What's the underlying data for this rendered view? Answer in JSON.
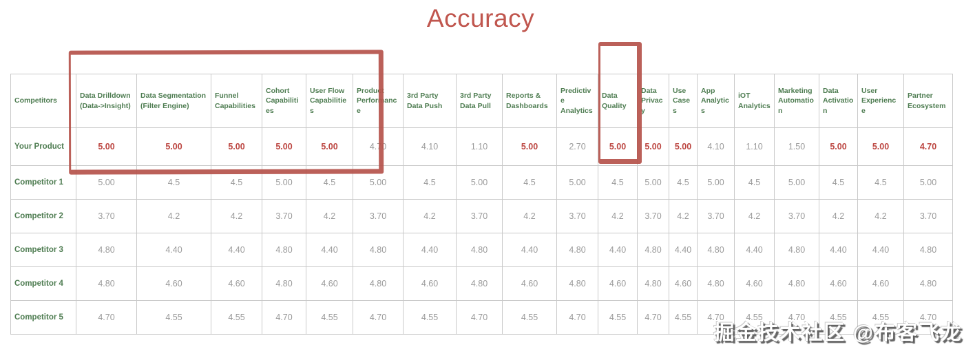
{
  "title": "Accuracy",
  "watermark": "掘金技术社区 @布客飞龙",
  "colors": {
    "title_red": "#c0564e",
    "header_green": "#4f7d52",
    "value_gray": "#9a9a9a",
    "highlight_red": "#bc4540",
    "annotation_red": "#b5524b",
    "grid_line": "#c9c9c9"
  },
  "annotations": [
    {
      "name": "core-capabilities-box",
      "covers": "Data Drilldown (Data->Insight) through User Flow Capabilities columns including Your Product scores"
    },
    {
      "name": "data-quality-box",
      "covers": "Data Quality column header and Your Product score"
    }
  ],
  "chart_data": {
    "type": "table",
    "title": "Accuracy",
    "corner_header": "Competitors",
    "columns": [
      "Data Drilldown (Data->Insight)",
      "Data Segmentation (Filter Engine)",
      "Funnel Capabilities",
      "Cohort Capabilities",
      "User Flow Capabilities",
      "Product Performance",
      "3rd Party Data Push",
      "3rd Party Data Pull",
      "Reports & Dashboards",
      "Predictive Analytics",
      "Data Quality",
      "Data Privacy",
      "Use Cases",
      "App Analytics",
      "iOT Analytics",
      "Marketing Automation",
      "Data Activation",
      "User Experience",
      "Partner Ecosystem"
    ],
    "rows": [
      {
        "label": "Your Product",
        "values": [
          "5.00",
          "5.00",
          "5.00",
          "5.00",
          "5.00",
          "4.70",
          "4.10",
          "1.10",
          "5.00",
          "2.70",
          "5.00",
          "5.00",
          "5.00",
          "4.10",
          "1.10",
          "1.50",
          "5.00",
          "5.00",
          "4.70"
        ],
        "emphasized": [
          true,
          true,
          true,
          true,
          true,
          false,
          false,
          false,
          true,
          false,
          true,
          true,
          true,
          false,
          false,
          false,
          true,
          true,
          true
        ]
      },
      {
        "label": "Competitor 1",
        "values": [
          "5.00",
          "4.5",
          "4.5",
          "5.00",
          "4.5",
          "5.00",
          "4.5",
          "5.00",
          "4.5",
          "5.00",
          "4.5",
          "5.00",
          "4.5",
          "5.00",
          "4.5",
          "5.00",
          "4.5",
          "4.5",
          "5.00"
        ]
      },
      {
        "label": "Competitor 2",
        "values": [
          "3.70",
          "4.2",
          "4.2",
          "3.70",
          "4.2",
          "3.70",
          "4.2",
          "3.70",
          "4.2",
          "3.70",
          "4.2",
          "3.70",
          "4.2",
          "3.70",
          "4.2",
          "3.70",
          "4.2",
          "4.2",
          "3.70"
        ]
      },
      {
        "label": "Competitor 3",
        "values": [
          "4.80",
          "4.40",
          "4.40",
          "4.80",
          "4.40",
          "4.80",
          "4.40",
          "4.80",
          "4.40",
          "4.80",
          "4.40",
          "4.80",
          "4.40",
          "4.80",
          "4.40",
          "4.80",
          "4.40",
          "4.40",
          "4.80"
        ]
      },
      {
        "label": "Competitor 4",
        "values": [
          "4.80",
          "4.60",
          "4.60",
          "4.80",
          "4.60",
          "4.80",
          "4.60",
          "4.80",
          "4.60",
          "4.80",
          "4.60",
          "4.80",
          "4.60",
          "4.80",
          "4.60",
          "4.80",
          "4.60",
          "4.60",
          "4.80"
        ]
      },
      {
        "label": "Competitor 5",
        "values": [
          "4.70",
          "4.55",
          "4.55",
          "4.70",
          "4.55",
          "4.70",
          "4.55",
          "4.70",
          "4.55",
          "4.70",
          "4.55",
          "4.70",
          "4.55",
          "4.70",
          "4.55",
          "4.70",
          "4.55",
          "4.55",
          "4.70"
        ]
      }
    ]
  }
}
